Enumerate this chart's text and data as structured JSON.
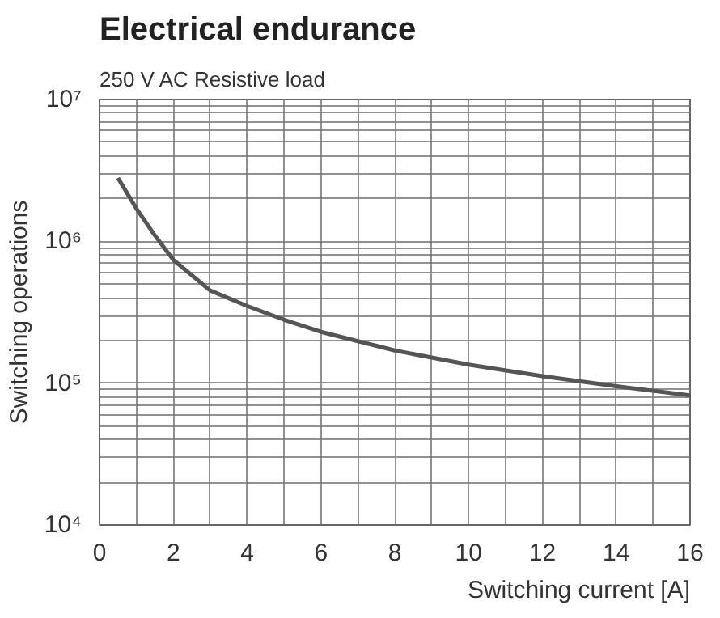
{
  "chart_data": {
    "type": "line",
    "title": "Electrical endurance",
    "subtitle": "250 V AC Resistive load",
    "xlabel": "Switching current [A]",
    "ylabel": "Switching operations",
    "log": "y",
    "grid": true,
    "marker": "none",
    "line_style": "solid",
    "xlim": [
      0,
      16
    ],
    "ylim": [
      10000,
      10000000
    ],
    "xticks": [
      0,
      {
        "value": 1,
        "label": null
      },
      2,
      {
        "value": 3,
        "label": null
      },
      4,
      {
        "value": 5,
        "label": null
      },
      6,
      {
        "value": 7,
        "label": null
      },
      8,
      {
        "value": 9,
        "label": null
      },
      10,
      {
        "value": 11,
        "label": null
      },
      12,
      {
        "value": 13,
        "label": null
      },
      14,
      {
        "value": 15,
        "label": null
      },
      16
    ],
    "yticks": [
      {
        "value": 10000,
        "label": "10⁴"
      },
      {
        "value": 20000,
        "label": null
      },
      {
        "value": 30000,
        "label": null
      },
      {
        "value": 40000,
        "label": null
      },
      {
        "value": 50000,
        "label": null
      },
      {
        "value": 60000,
        "label": null
      },
      {
        "value": 70000,
        "label": null
      },
      {
        "value": 80000,
        "label": null
      },
      {
        "value": 90000,
        "label": null
      },
      {
        "value": 100000,
        "label": "10⁵"
      },
      {
        "value": 200000,
        "label": null
      },
      {
        "value": 300000,
        "label": null
      },
      {
        "value": 400000,
        "label": null
      },
      {
        "value": 500000,
        "label": null
      },
      {
        "value": 600000,
        "label": null
      },
      {
        "value": 700000,
        "label": null
      },
      {
        "value": 800000,
        "label": null
      },
      {
        "value": 900000,
        "label": null
      },
      {
        "value": 1000000,
        "label": "10⁶"
      },
      {
        "value": 2000000,
        "label": null
      },
      {
        "value": 3000000,
        "label": null
      },
      {
        "value": 4000000,
        "label": null
      },
      {
        "value": 5000000,
        "label": null
      },
      {
        "value": 6000000,
        "label": null
      },
      {
        "value": 7000000,
        "label": null
      },
      {
        "value": 8000000,
        "label": null
      },
      {
        "value": 9000000,
        "label": null
      },
      {
        "value": 10000000,
        "label": "10⁷"
      }
    ],
    "x": [
      0.5,
      1,
      1.5,
      2,
      3,
      4,
      5,
      6,
      8,
      10,
      12,
      14,
      16
    ],
    "series": [
      {
        "color": "#555555",
        "values": [
          2800000,
          1700000,
          1100000,
          740000,
          450000,
          350000,
          280000,
          230000,
          170000,
          135000,
          112000,
          95000,
          82000
        ]
      }
    ]
  }
}
